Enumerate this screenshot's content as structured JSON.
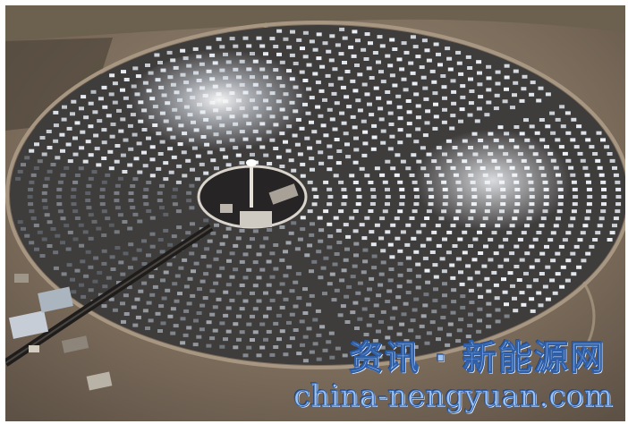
{
  "photo": {
    "subject": "solar-power-tower-heliostat-field-aerial",
    "colors": {
      "desert": "#8a7a66",
      "field_ground": "#3c3a3a",
      "mirror_bright": "#e8eef6",
      "mirror_dark": "#5a6272",
      "watermark_fill": "#9fc3ee",
      "watermark_stroke": "#2f5fa8"
    }
  },
  "watermark": {
    "chinese": "资讯 · 新能源网",
    "url": "china-nengyuan.com"
  }
}
